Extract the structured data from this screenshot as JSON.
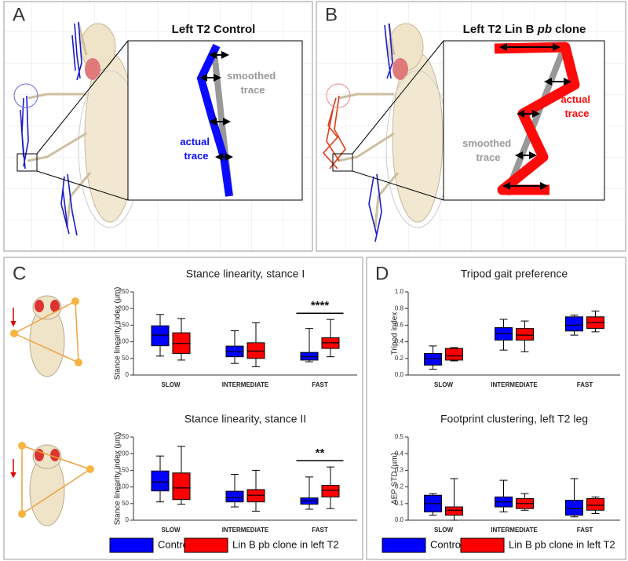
{
  "panels": {
    "A": {
      "label": "A",
      "title": "Left T2 Control",
      "smoothed_label": [
        "smoothed",
        "trace"
      ],
      "actual_label": [
        "actual",
        "trace"
      ]
    },
    "B": {
      "label": "B",
      "title": [
        "Left T2 Lin B ",
        "pb",
        " clone"
      ],
      "actual_label": [
        "actual",
        "trace"
      ],
      "smoothed_label": [
        "smoothed",
        "trace"
      ]
    },
    "C": {
      "label": "C"
    },
    "D": {
      "label": "D"
    }
  },
  "chart_data": [
    {
      "type": "box",
      "title": "Stance linearity, stance I",
      "y_label": "Stance linearity index (µm)",
      "categories": [
        "SLOW",
        "INTERMEDIATE",
        "FAST"
      ],
      "ylim": [
        0,
        250
      ],
      "yticks": [
        0,
        50,
        100,
        150,
        200,
        250
      ],
      "series": [
        {
          "color": "#0000ff",
          "whislo": [
            57,
            35,
            40
          ],
          "q1": [
            88,
            55,
            45
          ],
          "median": [
            120,
            70,
            55
          ],
          "q3": [
            148,
            87,
            68
          ],
          "whishi": [
            182,
            133,
            140
          ]
        },
        {
          "color": "#ff0000",
          "whislo": [
            45,
            25,
            55
          ],
          "q1": [
            65,
            50,
            80
          ],
          "median": [
            95,
            72,
            97
          ],
          "q3": [
            127,
            97,
            112
          ],
          "whishi": [
            170,
            157,
            167
          ]
        }
      ],
      "annotation": {
        "text": "****",
        "category": "FAST"
      }
    },
    {
      "type": "box",
      "title": "Stance linearity, stance II",
      "y_label": "Stance linearity index (µm)",
      "categories": [
        "SLOW",
        "INTERMEDIATE",
        "FAST"
      ],
      "ylim": [
        0,
        250
      ],
      "yticks": [
        0,
        50,
        100,
        150,
        200,
        250
      ],
      "series": [
        {
          "name": "Control",
          "color": "#0000ff",
          "whislo": [
            55,
            40,
            33
          ],
          "q1": [
            88,
            55,
            48
          ],
          "median": [
            115,
            68,
            58
          ],
          "q3": [
            148,
            87,
            67
          ],
          "whishi": [
            193,
            138,
            130
          ]
        },
        {
          "name": "Lin B pb clone in left T2",
          "color": "#ff0000",
          "whislo": [
            48,
            27,
            35
          ],
          "q1": [
            62,
            55,
            70
          ],
          "median": [
            97,
            75,
            90
          ],
          "q3": [
            142,
            92,
            105
          ],
          "whishi": [
            222,
            150,
            160
          ]
        }
      ],
      "annotation": {
        "text": "**",
        "category": "FAST"
      }
    },
    {
      "type": "box",
      "title": "Tripod gait preference",
      "y_label": "Tripod index",
      "categories": [
        "SLOW",
        "INTERMEDIATE",
        "FAST"
      ],
      "ylim": [
        0,
        1
      ],
      "yticks": [
        {
          "value": 0,
          "label": "0.0"
        },
        0.2,
        0.4,
        0.6,
        0.8,
        {
          "value": 1,
          "label": "1.0"
        }
      ],
      "series": [
        {
          "color": "#0000ff",
          "whislo": [
            0.07,
            0.3,
            0.48
          ],
          "q1": [
            0.12,
            0.42,
            0.53
          ],
          "median": [
            0.2,
            0.5,
            0.6
          ],
          "q3": [
            0.26,
            0.57,
            0.7
          ],
          "whishi": [
            0.35,
            0.67,
            0.72
          ]
        },
        {
          "color": "#ff0000",
          "whislo": [
            0.17,
            0.28,
            0.52
          ],
          "q1": [
            0.18,
            0.42,
            0.56
          ],
          "median": [
            0.23,
            0.48,
            0.63
          ],
          "q3": [
            0.32,
            0.56,
            0.7
          ],
          "whishi": [
            0.33,
            0.65,
            0.77
          ]
        }
      ]
    },
    {
      "type": "box",
      "title": "Footprint clustering, left T2 leg",
      "y_label": "AEP STD (µm)",
      "categories": [
        "SLOW",
        "INTERMEDIATE",
        "FAST"
      ],
      "ylim": [
        0,
        0.5
      ],
      "yticks": [
        {
          "value": 0,
          "label": "0.0"
        },
        0.1,
        0.2,
        0.3,
        0.4,
        0.5
      ],
      "series": [
        {
          "name": "Control",
          "color": "#0000ff",
          "whislo": [
            0.03,
            0.05,
            0.02
          ],
          "q1": [
            0.05,
            0.08,
            0.03
          ],
          "median": [
            0.1,
            0.11,
            0.07
          ],
          "q3": [
            0.15,
            0.14,
            0.12
          ],
          "whishi": [
            0.16,
            0.24,
            0.25
          ]
        },
        {
          "name": "Lin B pb clone in left T2",
          "color": "#ff0000",
          "whislo": [
            0.0,
            0.06,
            0.04
          ],
          "q1": [
            0.03,
            0.07,
            0.06
          ],
          "median": [
            0.06,
            0.1,
            0.09
          ],
          "q3": [
            0.08,
            0.13,
            0.13
          ],
          "whishi": [
            0.25,
            0.16,
            0.14
          ]
        }
      ]
    }
  ]
}
